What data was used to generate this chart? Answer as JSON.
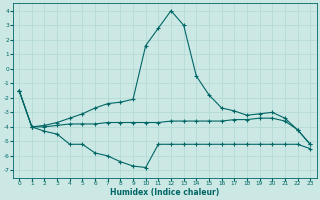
{
  "xlabel": "Humidex (Indice chaleur)",
  "background_color": "#cce8e4",
  "grid_color": "#b0d8d4",
  "line_color": "#006666",
  "xlim": [
    -0.5,
    23.5
  ],
  "ylim": [
    -7.5,
    4.5
  ],
  "yticks": [
    -7,
    -6,
    -5,
    -4,
    -3,
    -2,
    -1,
    0,
    1,
    2,
    3,
    4
  ],
  "xticks": [
    0,
    1,
    2,
    3,
    4,
    5,
    6,
    7,
    8,
    9,
    10,
    11,
    12,
    13,
    14,
    15,
    16,
    17,
    18,
    19,
    20,
    21,
    22,
    23
  ],
  "hours": [
    0,
    1,
    2,
    3,
    4,
    5,
    6,
    7,
    8,
    9,
    10,
    11,
    12,
    13,
    14,
    15,
    16,
    17,
    18,
    19,
    20,
    21,
    22,
    23
  ],
  "line_max": [
    -1.5,
    -4.0,
    -3.9,
    -3.7,
    -3.4,
    -3.1,
    -2.7,
    -2.4,
    -2.3,
    -2.1,
    1.6,
    2.8,
    4.0,
    3.0,
    -0.5,
    -1.8,
    -2.7,
    -2.9,
    -3.2,
    -3.1,
    -3.0,
    -3.4,
    -4.2,
    -5.2
  ],
  "line_mean": [
    -1.5,
    -4.0,
    -4.0,
    -3.9,
    -3.8,
    -3.8,
    -3.8,
    -3.7,
    -3.7,
    -3.7,
    -3.7,
    -3.7,
    -3.6,
    -3.6,
    -3.6,
    -3.6,
    -3.6,
    -3.5,
    -3.5,
    -3.4,
    -3.4,
    -3.6,
    -4.2,
    -5.2
  ],
  "line_min": [
    -1.5,
    -4.0,
    -4.3,
    -4.5,
    -5.2,
    -5.2,
    -5.8,
    -6.0,
    -6.4,
    -6.7,
    -6.8,
    -5.2,
    -5.2,
    -5.2,
    -5.2,
    -5.2,
    -5.2,
    -5.2,
    -5.2,
    -5.2,
    -5.2,
    -5.2,
    -5.2,
    -5.5
  ]
}
